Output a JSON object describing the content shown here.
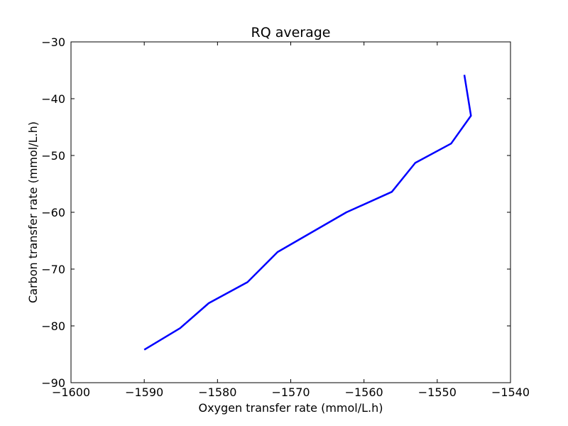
{
  "chart_data": {
    "type": "line",
    "title": "RQ average",
    "xlabel": "Oxygen transfer rate (mmol/L.h)",
    "ylabel": "Carbon transfer rate (mmol/L.h)",
    "xlim": [
      -1600,
      -1540
    ],
    "ylim": [
      -90,
      -30
    ],
    "xticks": [
      -1600,
      -1590,
      -1580,
      -1570,
      -1560,
      -1550,
      -1540
    ],
    "yticks": [
      -90,
      -80,
      -70,
      -60,
      -50,
      -40,
      -30
    ],
    "xtick_labels": [
      "−1600",
      "−1590",
      "−1580",
      "−1570",
      "−1560",
      "−1550",
      "−1540"
    ],
    "ytick_labels": [
      "−90",
      "−80",
      "−70",
      "−60",
      "−50",
      "−40",
      "−30"
    ],
    "grid": false,
    "series": [
      {
        "color": "#0000ff",
        "x": [
          -1590.0,
          -1585.1,
          -1581.2,
          -1575.9,
          -1571.8,
          -1562.4,
          -1556.2,
          -1553.0,
          -1548.1,
          -1545.4,
          -1546.3
        ],
        "y": [
          -84.2,
          -80.4,
          -76.0,
          -72.3,
          -67.0,
          -60.0,
          -56.4,
          -51.3,
          -47.9,
          -43.0,
          -35.8
        ]
      }
    ]
  }
}
